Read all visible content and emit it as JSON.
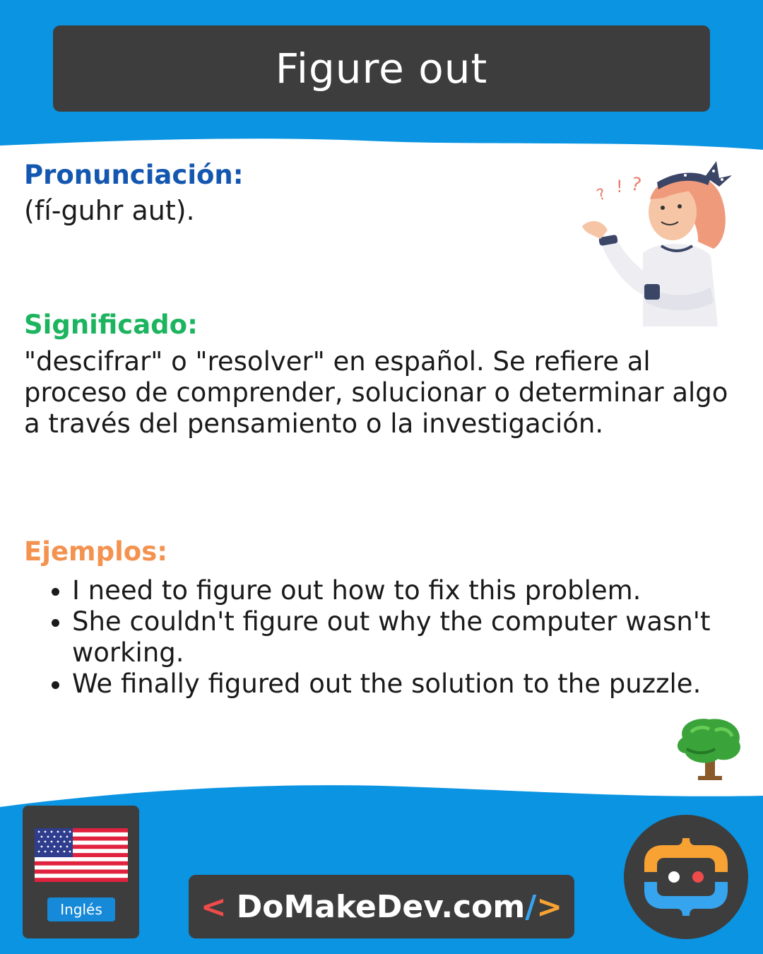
{
  "colors": {
    "header_blue": "#0a94e2",
    "dark_panel": "#3d3d3d",
    "pronunciation_blue": "#1457b0",
    "meaning_green": "#1db45f",
    "examples_orange": "#f4924f",
    "brand_red": "#ef4b4b",
    "brand_blue": "#36a4ee",
    "brand_orange": "#f7a233"
  },
  "header": {
    "title": "Figure out"
  },
  "pronunciation": {
    "label": "Pronunciación:",
    "text": "(fí-guhr aut)."
  },
  "meaning": {
    "label": "Significado:",
    "text": " \"descifrar\" o \"resolver\" en español. Se refiere al proceso de comprender, solucionar o determinar algo a través del pensamiento o la investigación."
  },
  "examples": {
    "label": "Ejemplos:",
    "items": [
      "I need to figure out how to fix this problem.",
      "She couldn't figure out why the computer wasn't working.",
      "We finally figured out the solution to the puzzle."
    ]
  },
  "illustrations": {
    "person": "thinking-girl-illustration",
    "decor": "tree-icon"
  },
  "footer": {
    "flag_icon": "us-flag-icon",
    "language_badge": "Inglés",
    "brand": {
      "left": "<",
      "name": "DoMakeDev.com",
      "slash": "/",
      "right": ">"
    },
    "logo_icon": "domakedev-logo-icon"
  }
}
